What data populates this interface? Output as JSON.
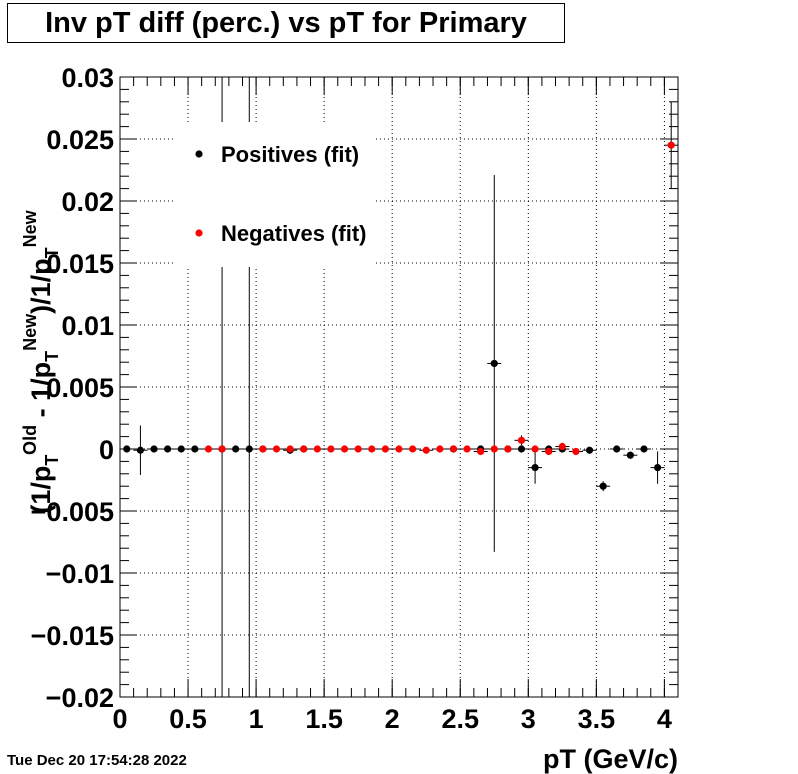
{
  "chart_data": {
    "type": "scatter",
    "title": "Inv pT diff (perc.) vs pT for Primary",
    "xlabel": "pT (GeV/c)",
    "ylabel_parts": [
      "(1/p",
      "T",
      "Old",
      " - 1/p",
      "T",
      "New",
      ")/1/p",
      "T",
      "New"
    ],
    "xlim": [
      0,
      4.1
    ],
    "ylim": [
      -0.02,
      0.03
    ],
    "x_ticks": [
      {
        "v": 0,
        "label": "0"
      },
      {
        "v": 0.5,
        "label": "0.5"
      },
      {
        "v": 1,
        "label": "1"
      },
      {
        "v": 1.5,
        "label": "1.5"
      },
      {
        "v": 2,
        "label": "2"
      },
      {
        "v": 2.5,
        "label": "2.5"
      },
      {
        "v": 3,
        "label": "3"
      },
      {
        "v": 3.5,
        "label": "3.5"
      },
      {
        "v": 4,
        "label": "4"
      }
    ],
    "y_ticks": [
      {
        "v": -0.02,
        "label": "−0.02"
      },
      {
        "v": -0.015,
        "label": "−0.015"
      },
      {
        "v": -0.01,
        "label": "−0.01"
      },
      {
        "v": -0.005,
        "label": "−0.005"
      },
      {
        "v": 0,
        "label": "0"
      },
      {
        "v": 0.005,
        "label": "0.005"
      },
      {
        "v": 0.01,
        "label": "0.01"
      },
      {
        "v": 0.015,
        "label": "0.015"
      },
      {
        "v": 0.02,
        "label": "0.02"
      },
      {
        "v": 0.025,
        "label": "0.025"
      },
      {
        "v": 0.03,
        "label": "0.03"
      }
    ],
    "grid": true,
    "legend_position": "top-left",
    "series": [
      {
        "name": "Positives (fit)",
        "color": "#000000",
        "points": [
          {
            "x": 0.05,
            "y": 0.0,
            "err": 0.0002
          },
          {
            "x": 0.15,
            "y": -0.0001,
            "err": 0.002
          },
          {
            "x": 0.25,
            "y": 0.0,
            "err": 0.0002
          },
          {
            "x": 0.35,
            "y": 0.0,
            "err": 0.0002
          },
          {
            "x": 0.45,
            "y": 0.0,
            "err": 0.0002
          },
          {
            "x": 0.55,
            "y": 0.0,
            "err": 0.0002
          },
          {
            "x": 0.75,
            "y": 0.0,
            "err": 0.035
          },
          {
            "x": 0.85,
            "y": 0.0,
            "err": 0.0002
          },
          {
            "x": 0.95,
            "y": 0.0,
            "err": 0.035
          },
          {
            "x": 1.05,
            "y": 0.0,
            "err": 0.0002
          },
          {
            "x": 1.25,
            "y": -0.0001,
            "err": 0.0002
          },
          {
            "x": 1.35,
            "y": 0.0,
            "err": 0.0002
          },
          {
            "x": 2.45,
            "y": 0.0,
            "err": 0.0002
          },
          {
            "x": 2.65,
            "y": 0.0,
            "err": 0.0002
          },
          {
            "x": 2.75,
            "y": 0.0069,
            "err": 0.0152
          },
          {
            "x": 2.85,
            "y": 0.0,
            "err": 0.0002
          },
          {
            "x": 2.95,
            "y": 0.0,
            "err": 0.0002
          },
          {
            "x": 3.05,
            "y": -0.0015,
            "err": 0.0013
          },
          {
            "x": 3.15,
            "y": 0.0,
            "err": 0.0002
          },
          {
            "x": 3.25,
            "y": 0.0,
            "err": 0.0002
          },
          {
            "x": 3.45,
            "y": -0.0001,
            "err": 0.0002
          },
          {
            "x": 3.55,
            "y": -0.003,
            "err": 0.0004
          },
          {
            "x": 3.65,
            "y": 0.0,
            "err": 0.0002
          },
          {
            "x": 3.75,
            "y": -0.0005,
            "err": 0.0003
          },
          {
            "x": 3.85,
            "y": 0.0,
            "err": 0.0002
          },
          {
            "x": 3.95,
            "y": -0.0015,
            "err": 0.0013
          }
        ]
      },
      {
        "name": "Negatives (fit)",
        "color": "#ff0000",
        "points": [
          {
            "x": 0.65,
            "y": 0.0,
            "err": 0.0002
          },
          {
            "x": 0.75,
            "y": 0.0,
            "err": 0.0002
          },
          {
            "x": 1.05,
            "y": 0.0,
            "err": 0.0002
          },
          {
            "x": 1.15,
            "y": 0.0,
            "err": 0.0002
          },
          {
            "x": 1.25,
            "y": 0.0,
            "err": 0.0002
          },
          {
            "x": 1.35,
            "y": 0.0,
            "err": 0.0002
          },
          {
            "x": 1.45,
            "y": 0.0,
            "err": 0.0002
          },
          {
            "x": 1.55,
            "y": 0.0,
            "err": 0.0002
          },
          {
            "x": 1.65,
            "y": 0.0,
            "err": 0.0002
          },
          {
            "x": 1.75,
            "y": 0.0,
            "err": 0.0002
          },
          {
            "x": 1.85,
            "y": 0.0,
            "err": 0.0002
          },
          {
            "x": 1.95,
            "y": 0.0,
            "err": 0.0002
          },
          {
            "x": 2.05,
            "y": 0.0,
            "err": 0.0002
          },
          {
            "x": 2.15,
            "y": 0.0,
            "err": 0.0002
          },
          {
            "x": 2.25,
            "y": -0.0001,
            "err": 0.0002
          },
          {
            "x": 2.35,
            "y": 0.0,
            "err": 0.0002
          },
          {
            "x": 2.45,
            "y": 0.0,
            "err": 0.0002
          },
          {
            "x": 2.55,
            "y": 0.0,
            "err": 0.0002
          },
          {
            "x": 2.65,
            "y": -0.0002,
            "err": 0.0002
          },
          {
            "x": 2.75,
            "y": 0.0,
            "err": 0.0002
          },
          {
            "x": 2.85,
            "y": 0.0,
            "err": 0.0002
          },
          {
            "x": 2.95,
            "y": 0.0007,
            "err": 0.0004
          },
          {
            "x": 3.05,
            "y": 0.0,
            "err": 0.0002
          },
          {
            "x": 3.15,
            "y": -0.0002,
            "err": 0.0002
          },
          {
            "x": 3.25,
            "y": 0.0002,
            "err": 0.0003
          },
          {
            "x": 3.35,
            "y": -0.0002,
            "err": 0.0002
          },
          {
            "x": 4.05,
            "y": 0.0245,
            "err": 0.0035
          }
        ]
      }
    ]
  },
  "timestamp": "Tue Dec 20 17:54:28 2022"
}
